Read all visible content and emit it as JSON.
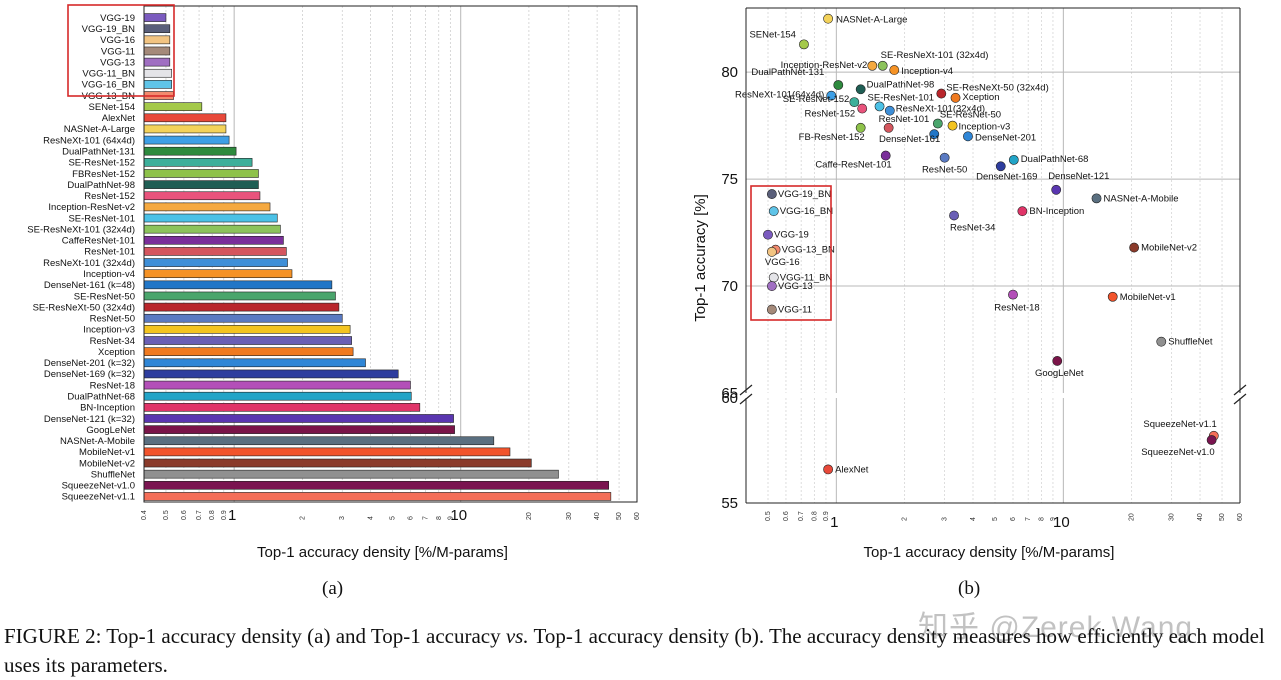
{
  "chart_data": [
    {
      "type": "bar",
      "panel": "(a)",
      "orientation": "horizontal",
      "xscale": "log",
      "xlim": [
        0.4,
        60
      ],
      "xlabel": "Top-1 accuracy density [%/M-params]",
      "major_ticks": [
        1,
        10
      ],
      "minor_ticks": [
        "0.4",
        "0.5",
        "0.6",
        "0.7",
        "0.8",
        "0.9",
        "2",
        "3",
        "4",
        "5",
        "6",
        "7",
        "8",
        "9",
        "20",
        "30",
        "40",
        "50",
        "60"
      ],
      "highlight_box": "VGG models (red rectangle)",
      "categories": [
        "VGG-19",
        "VGG-19_BN",
        "VGG-16",
        "VGG-11",
        "VGG-13",
        "VGG-11_BN",
        "VGG-16_BN",
        "VGG-13_BN",
        "SENet-154",
        "AlexNet",
        "NASNet-A-Large",
        "ResNeXt-101 (64x4d)",
        "DualPathNet-131",
        "SE-ResNet-152",
        "FBResNet-152",
        "DualPathNet-98",
        "ResNet-152",
        "Inception-ResNet-v2",
        "SE-ResNet-101",
        "SE-ResNeXt-101 (32x4d)",
        "CaffeResNet-101",
        "ResNet-101",
        "ResNeXt-101 (32x4d)",
        "Inception-v4",
        "DenseNet-161 (k=48)",
        "SE-ResNet-50",
        "SE-ResNeXt-50 (32x4d)",
        "ResNet-50",
        "Inception-v3",
        "ResNet-34",
        "Xception",
        "DenseNet-201 (k=32)",
        "DenseNet-169 (k=32)",
        "ResNet-18",
        "DualPathNet-68",
        "BN-Inception",
        "DenseNet-121 (k=32)",
        "GoogLeNet",
        "NASNet-A-Mobile",
        "MobileNet-v1",
        "MobileNet-v2",
        "ShuffleNet",
        "SqueezeNet-v1.0",
        "SqueezeNet-v1.1"
      ],
      "values": [
        0.5,
        0.52,
        0.52,
        0.52,
        0.52,
        0.53,
        0.53,
        0.54,
        0.72,
        0.92,
        0.92,
        0.95,
        1.02,
        1.2,
        1.28,
        1.28,
        1.3,
        1.44,
        1.55,
        1.6,
        1.65,
        1.7,
        1.72,
        1.8,
        2.7,
        2.8,
        2.9,
        3.0,
        3.25,
        3.3,
        3.35,
        3.8,
        5.3,
        6.0,
        6.05,
        6.6,
        9.3,
        9.4,
        14.0,
        16.5,
        20.5,
        27.0,
        45.0,
        46.0
      ],
      "colors": [
        "#7b5bbf",
        "#5a5f7a",
        "#f2c482",
        "#a58a7a",
        "#a06fc2",
        "#e4e4e8",
        "#5fc4e8",
        "#f38a6e",
        "#a4c94a",
        "#e8493a",
        "#f3d25a",
        "#3d9fe6",
        "#2e8a3e",
        "#3daf9a",
        "#8ec24a",
        "#1f5e54",
        "#e9537c",
        "#f5a940",
        "#4bc1e6",
        "#8cc35c",
        "#7a2f9a",
        "#d4565e",
        "#3e8fd8",
        "#f59225",
        "#2176c7",
        "#4aa56c",
        "#b9262c",
        "#5a7ac2",
        "#f3c420",
        "#6a5fb5",
        "#f07a20",
        "#2f86d6",
        "#2e3d9e",
        "#b34fb8",
        "#22a4c7",
        "#e03468",
        "#5a36b0",
        "#7a1448",
        "#5a6f80",
        "#f2542c",
        "#8a3a2a",
        "#909090",
        "#7a1450",
        "#f46e58"
      ]
    },
    {
      "type": "scatter",
      "panel": "(b)",
      "xscale": "log",
      "xlim": [
        0.4,
        60
      ],
      "xlabel": "Top-1 accuracy density [%/M-params]",
      "ylabel": "Top-1 accuracy [%]",
      "y_upper_range": [
        65,
        83
      ],
      "y_lower_range": [
        55,
        60
      ],
      "broken_axis": true,
      "yticks_upper": [
        "65",
        "70",
        "75",
        "80"
      ],
      "yticks_lower": [
        "55",
        "60"
      ],
      "highlight_box": "VGG models (red rectangle)",
      "points": [
        {
          "name": "NASNet-A-Large",
          "x": 0.92,
          "y": 82.5,
          "color": "#f3d25a"
        },
        {
          "name": "SENet-154",
          "x": 0.72,
          "y": 81.3,
          "color": "#a4c94a"
        },
        {
          "name": "SE-ResNeXt-101 (32x4d)",
          "x": 1.6,
          "y": 80.3,
          "color": "#8cc35c"
        },
        {
          "name": "Inception-ResNet-v2",
          "x": 1.44,
          "y": 80.3,
          "color": "#f5a940"
        },
        {
          "name": "Inception-v4",
          "x": 1.8,
          "y": 80.1,
          "color": "#f59225"
        },
        {
          "name": "DualPathNet-131",
          "x": 1.02,
          "y": 79.4,
          "color": "#2e8a3e"
        },
        {
          "name": "DualPathNet-98",
          "x": 1.28,
          "y": 79.2,
          "color": "#1f5e54"
        },
        {
          "name": "SE-ResNeXt-50 (32x4d)",
          "x": 2.9,
          "y": 79.0,
          "color": "#b9262c"
        },
        {
          "name": "ResNeXt-101(64x4d)",
          "x": 0.95,
          "y": 78.9,
          "color": "#3d9fe6"
        },
        {
          "name": "Xception",
          "x": 3.35,
          "y": 78.8,
          "color": "#f07a20"
        },
        {
          "name": "SE-ResNet-152",
          "x": 1.2,
          "y": 78.6,
          "color": "#3daf9a"
        },
        {
          "name": "SE-ResNet-101",
          "x": 1.55,
          "y": 78.4,
          "color": "#4bc1e6"
        },
        {
          "name": "ResNeXt-101(32x4d)",
          "x": 1.72,
          "y": 78.2,
          "color": "#3e8fd8"
        },
        {
          "name": "ResNet-152",
          "x": 1.3,
          "y": 78.3,
          "color": "#e9537c"
        },
        {
          "name": "SE-ResNet-50",
          "x": 2.8,
          "y": 77.6,
          "color": "#4aa56c"
        },
        {
          "name": "Inception-v3",
          "x": 3.25,
          "y": 77.5,
          "color": "#f3c420"
        },
        {
          "name": "ResNet-101",
          "x": 1.7,
          "y": 77.4,
          "color": "#d4565e"
        },
        {
          "name": "FB-ResNet-152",
          "x": 1.28,
          "y": 77.4,
          "color": "#8ec24a"
        },
        {
          "name": "DenseNet-161",
          "x": 2.7,
          "y": 77.1,
          "color": "#2176c7"
        },
        {
          "name": "DenseNet-201",
          "x": 3.8,
          "y": 77.0,
          "color": "#2f86d6"
        },
        {
          "name": "Caffe-ResNet-101",
          "x": 1.65,
          "y": 76.1,
          "color": "#7a2f9a"
        },
        {
          "name": "ResNet-50",
          "x": 3.0,
          "y": 76.0,
          "color": "#5a7ac2"
        },
        {
          "name": "DualPathNet-68",
          "x": 6.05,
          "y": 75.9,
          "color": "#22a4c7"
        },
        {
          "name": "DenseNet-169",
          "x": 5.3,
          "y": 75.6,
          "color": "#2e3d9e"
        },
        {
          "name": "DenseNet-121",
          "x": 9.3,
          "y": 74.5,
          "color": "#5a36b0"
        },
        {
          "name": "NASNet-A-Mobile",
          "x": 14.0,
          "y": 74.1,
          "color": "#5a6f80"
        },
        {
          "name": "BN-Inception",
          "x": 6.6,
          "y": 73.5,
          "color": "#e03468"
        },
        {
          "name": "ResNet-34",
          "x": 3.3,
          "y": 73.3,
          "color": "#6a5fb5"
        },
        {
          "name": "MobileNet-v2",
          "x": 20.5,
          "y": 71.8,
          "color": "#8a3a2a"
        },
        {
          "name": "ResNet-18",
          "x": 6.0,
          "y": 69.6,
          "color": "#b34fb8"
        },
        {
          "name": "MobileNet-v1",
          "x": 16.5,
          "y": 69.5,
          "color": "#f2542c"
        },
        {
          "name": "ShuffleNet",
          "x": 27.0,
          "y": 67.4,
          "color": "#909090"
        },
        {
          "name": "GoogLeNet",
          "x": 9.4,
          "y": 66.5,
          "color": "#7a1448"
        },
        {
          "name": "VGG-19_BN",
          "x": 0.52,
          "y": 74.3,
          "color": "#5a5f7a"
        },
        {
          "name": "VGG-16_BN",
          "x": 0.53,
          "y": 73.5,
          "color": "#5fc4e8"
        },
        {
          "name": "VGG-19",
          "x": 0.5,
          "y": 72.4,
          "color": "#7b5bbf"
        },
        {
          "name": "VGG-13_BN",
          "x": 0.54,
          "y": 71.7,
          "color": "#f38a6e"
        },
        {
          "name": "VGG-16",
          "x": 0.52,
          "y": 71.6,
          "color": "#f2c482"
        },
        {
          "name": "VGG-11_BN",
          "x": 0.53,
          "y": 70.4,
          "color": "#e4e4e8"
        },
        {
          "name": "VGG-13",
          "x": 0.52,
          "y": 70.0,
          "color": "#a06fc2"
        },
        {
          "name": "VGG-11",
          "x": 0.52,
          "y": 68.9,
          "color": "#a58a7a"
        },
        {
          "name": "AlexNet",
          "x": 0.92,
          "y": 56.6,
          "color": "#e8493a"
        },
        {
          "name": "SqueezeNet-v1.1",
          "x": 46.0,
          "y": 58.2,
          "color": "#f46e58"
        },
        {
          "name": "SqueezeNet-v1.0",
          "x": 45.0,
          "y": 58.0,
          "color": "#7a1450"
        }
      ]
    }
  ],
  "subfig_labels": {
    "a": "(a)",
    "b": "(b)"
  },
  "caption": {
    "part1": "FIGURE 2: Top-1 accuracy density (a) and Top-1 accuracy ",
    "vs": "vs.",
    "part2": " Top-1 accuracy density (b). The accuracy density measures how efficiently each model uses its parameters."
  },
  "watermark": "知乎 @Zerek Wang"
}
